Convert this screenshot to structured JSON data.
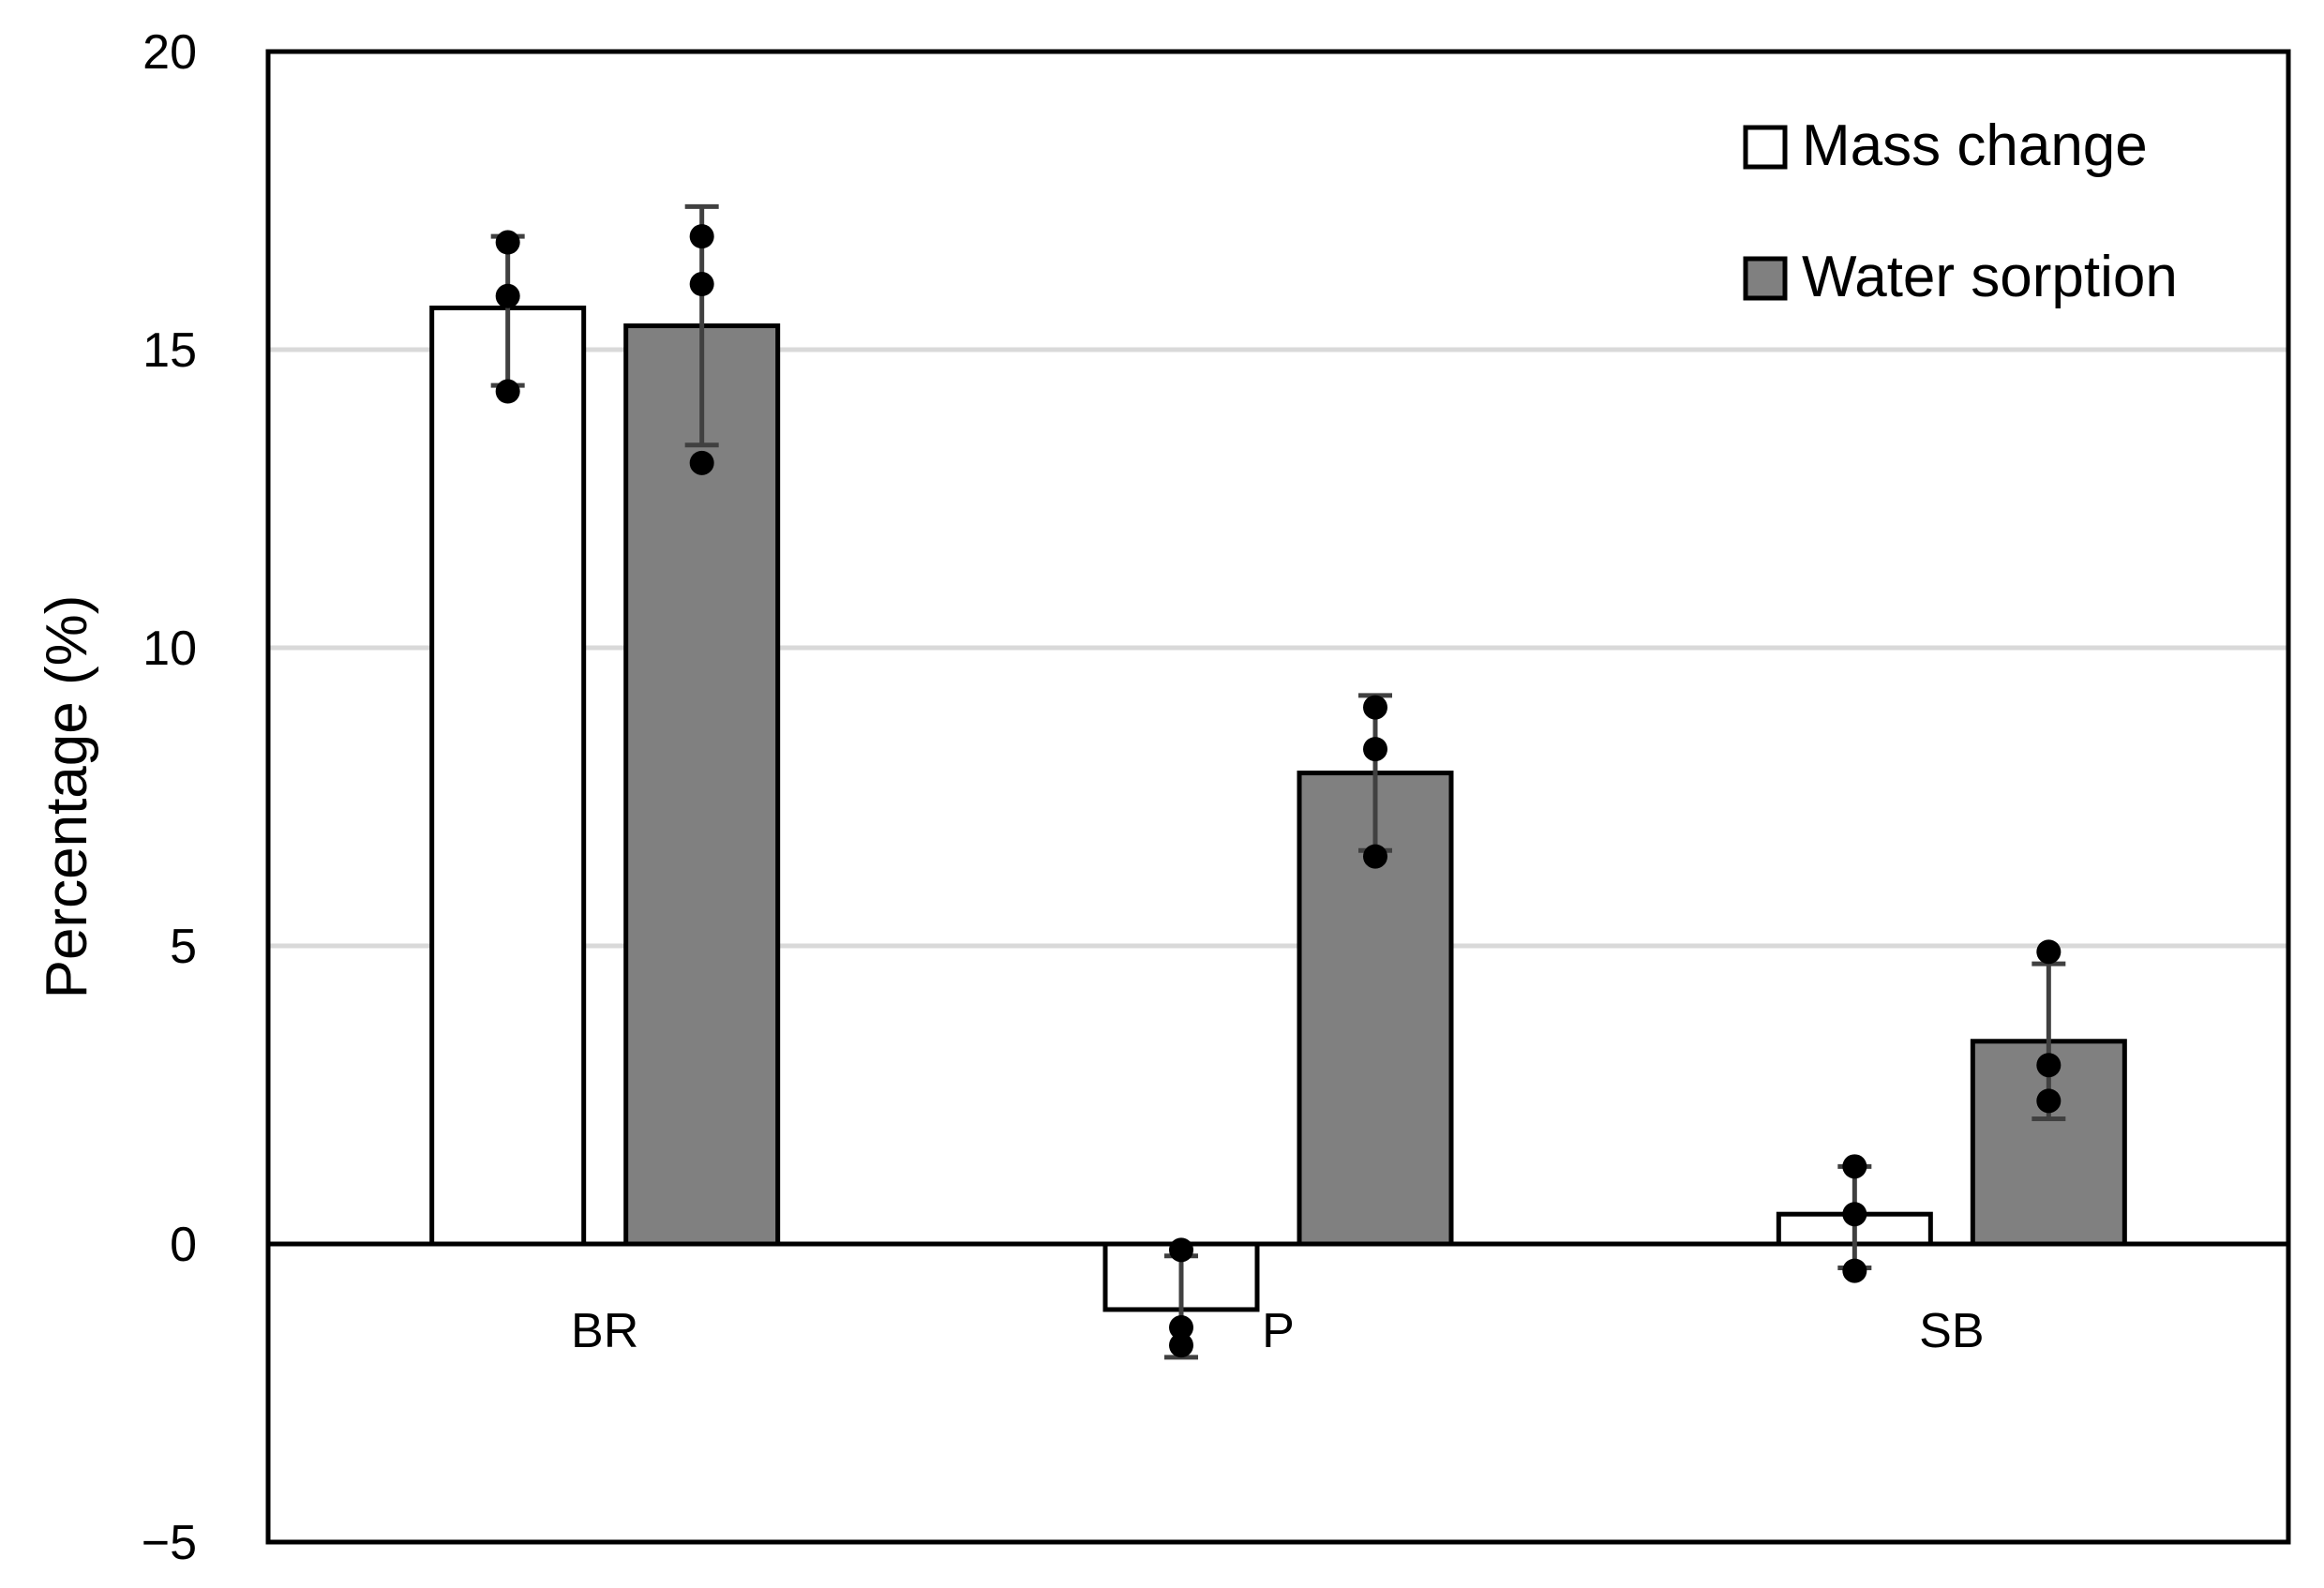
{
  "chart_data": {
    "type": "bar",
    "title": "",
    "xlabel": "",
    "ylabel": "Percentage (%)",
    "ylim": [
      -5,
      20
    ],
    "yticks": [
      20,
      15,
      10,
      5,
      0,
      -5
    ],
    "ytick_labels": [
      "20",
      "15",
      "10",
      "5",
      "0",
      "−5"
    ],
    "grid": "horizontal",
    "legend_position": "top-right",
    "categories": [
      "BR",
      "P",
      "SB"
    ],
    "series": [
      {
        "name": "Mass change",
        "fill": "#ffffff",
        "values": [
          15.7,
          -1.1,
          0.5
        ],
        "error_low": [
          14.4,
          -1.9,
          -0.4
        ],
        "error_high": [
          16.9,
          -0.2,
          1.3
        ],
        "points": [
          [
            16.8,
            15.9,
            14.3
          ],
          [
            -0.1,
            -1.4,
            -1.7
          ],
          [
            1.3,
            0.5,
            -0.45
          ]
        ]
      },
      {
        "name": "Water sorption",
        "fill": "#808080",
        "values": [
          15.4,
          7.9,
          3.4
        ],
        "error_low": [
          13.4,
          6.6,
          2.1
        ],
        "error_high": [
          17.4,
          9.2,
          4.7
        ],
        "points": [
          [
            16.9,
            16.1,
            13.1
          ],
          [
            9.0,
            8.3,
            6.5
          ],
          [
            4.9,
            3.0,
            2.4
          ]
        ]
      }
    ]
  }
}
